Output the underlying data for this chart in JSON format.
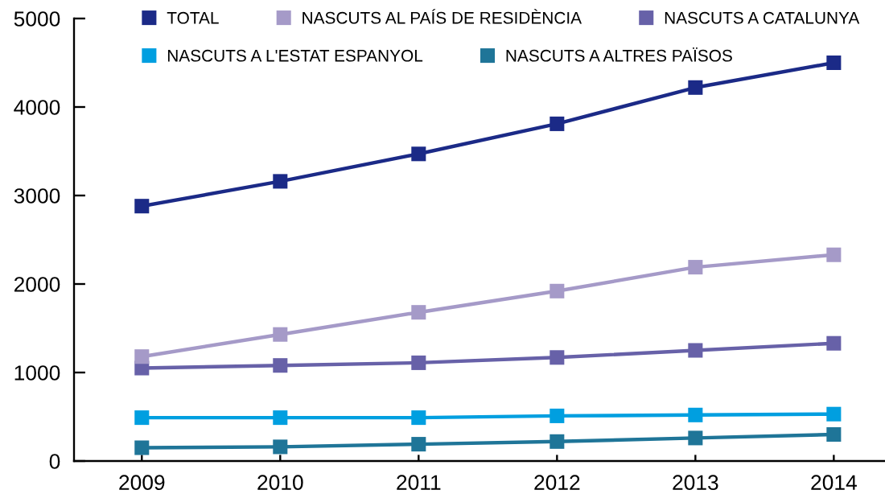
{
  "chart_data": {
    "type": "line",
    "categories": [
      "2009",
      "2010",
      "2011",
      "2012",
      "2013",
      "2014"
    ],
    "series": [
      {
        "name": "TOTAL",
        "color": "#1b2a87",
        "values": [
          2880,
          3160,
          3470,
          3810,
          4220,
          4500
        ]
      },
      {
        "name": "NASCUTS AL PAÍS DE RESIDÈNCIA",
        "color": "#a59ac8",
        "values": [
          1180,
          1430,
          1680,
          1920,
          2190,
          2330
        ]
      },
      {
        "name": "NASCUTS A CATALUNYA",
        "color": "#6761a8",
        "values": [
          1050,
          1080,
          1110,
          1170,
          1250,
          1330
        ]
      },
      {
        "name": "NASCUTS A L'ESTAT ESPANYOL",
        "color": "#009fe0",
        "values": [
          490,
          490,
          490,
          510,
          520,
          530
        ]
      },
      {
        "name": "NASCUTS A ALTRES PAÏSOS",
        "color": "#1f7598",
        "values": [
          150,
          160,
          190,
          220,
          260,
          300
        ]
      }
    ],
    "ylim": [
      0,
      5000
    ],
    "yticks": [
      0,
      1000,
      2000,
      3000,
      4000,
      5000
    ],
    "marker": "square",
    "line_style": "solid",
    "grid": false,
    "legend": "top"
  }
}
